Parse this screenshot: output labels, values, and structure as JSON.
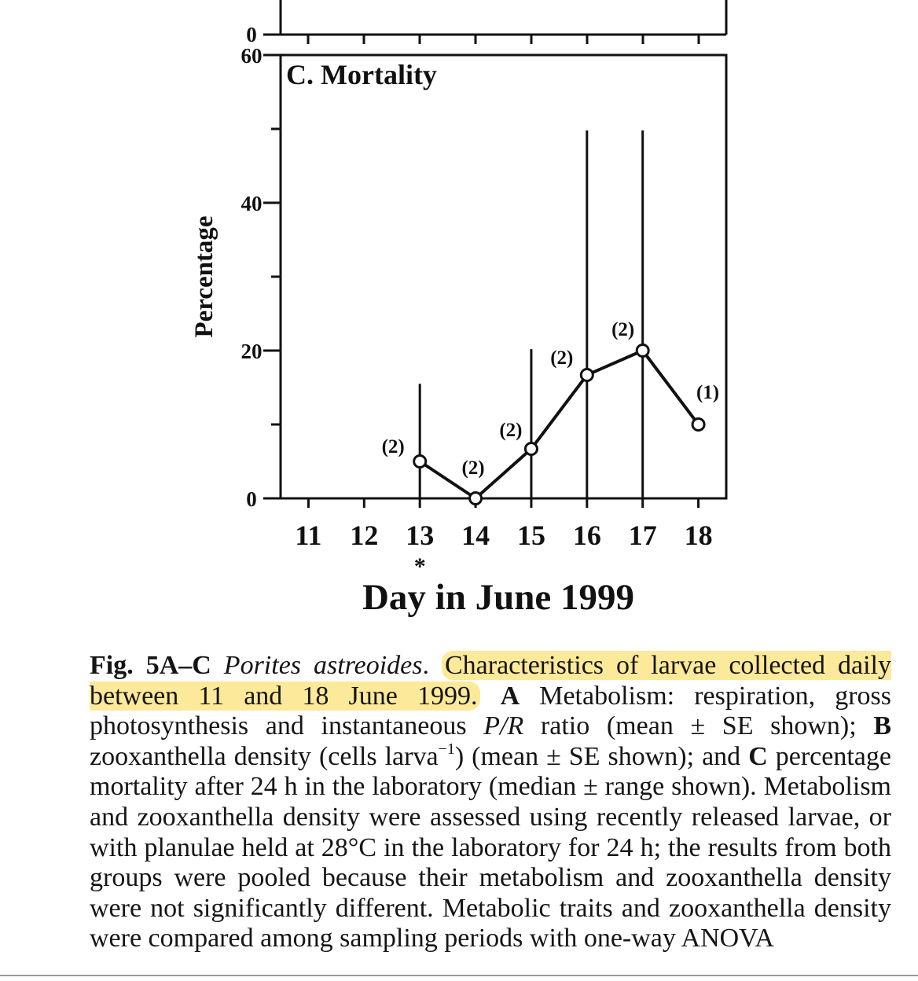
{
  "panel_c": {
    "title": "C. Mortality",
    "ylabel": "Percentage",
    "xlabel": "Day in June 1999",
    "top_panel_tick": "0",
    "asterisk": "*",
    "asterisk_day": 13
  },
  "chart_data": {
    "type": "line",
    "title": "C. Mortality",
    "xlabel": "Day in June 1999",
    "ylabel": "Percentage",
    "ylim": [
      0,
      60
    ],
    "xlim": [
      10.5,
      18.5
    ],
    "y_ticks_labeled": [
      0,
      20,
      40,
      60
    ],
    "y_ticks_minor": [
      10,
      30,
      50
    ],
    "x_ticks": [
      11,
      12,
      13,
      14,
      15,
      16,
      17,
      18
    ],
    "x": [
      13,
      14,
      15,
      16,
      17,
      18
    ],
    "values": [
      5,
      0,
      6.7,
      16.7,
      20,
      10
    ],
    "range_upper": [
      15.5,
      0,
      20.2,
      49.8,
      49.8,
      10
    ],
    "range_lower": [
      0,
      0,
      0,
      0,
      0,
      10
    ],
    "sample_labels": [
      "(2)",
      "(2)",
      "(2)",
      "(2)",
      "(2)",
      "(1)"
    ],
    "grid": false,
    "legend": "none"
  },
  "caption": {
    "fig_label": "Fig. 5A–C",
    "species": "Porites astreoides",
    "highlighted": "Characteristics of larvae collected daily between 11 and 18 June 1999.",
    "a_label": "A",
    "a_text": "Metabolism: respiration, gross photosynthesis and instantaneous",
    "pr": "P/R",
    "a_text2": "ratio (mean ± SE shown);",
    "b_label": "B",
    "b_text": "zooxanthella density (cells larva",
    "b_sup": "−1",
    "b_text2": ") (mean ± SE shown); and",
    "c_label": "C",
    "c_text": "percentage mortality after 24 h in the laboratory (median ± range shown). Metabolism and zooxanthella density were assessed using recently released larvae, or with planulae held at 28°C in the laboratory for 24 h; the results from both groups were pooled because their metabolism and zooxanthella density were not significantly different. Metabolic traits and zooxanthella density were compared among sampling periods with one-way ANOVA"
  }
}
